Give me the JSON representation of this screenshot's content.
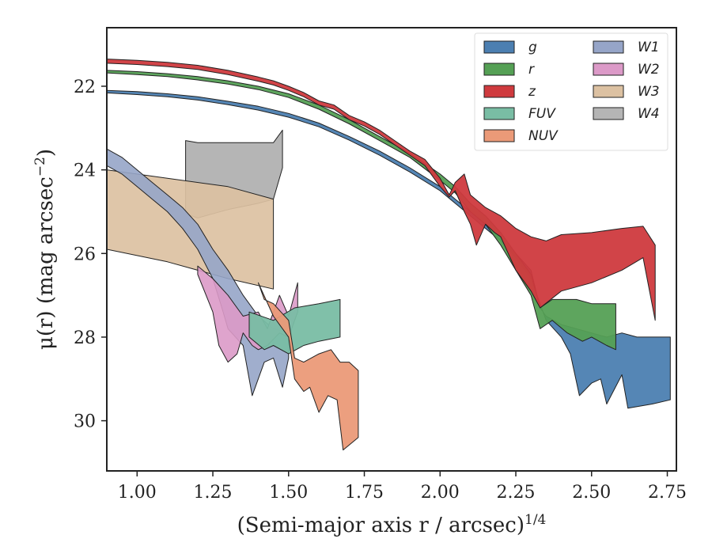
{
  "chart_data": {
    "type": "area",
    "xlabel": "(Semi-major axis r / arcsec)",
    "xlabel_exponent": "1/4",
    "ylabel": "μ(r) (mag arcsec",
    "ylabel_exponent": "−2",
    "ylabel_close": ")",
    "xlim": [
      0.9,
      2.78
    ],
    "ylim": [
      31.2,
      20.6
    ],
    "y_inverted": true,
    "grid": false,
    "legend_placement": "top-right",
    "legend_columns": 2,
    "x_ticks": [
      {
        "value": 1.0,
        "label": "1.00"
      },
      {
        "value": 1.25,
        "label": "1.25"
      },
      {
        "value": 1.5,
        "label": "1.50"
      },
      {
        "value": 1.75,
        "label": "1.75"
      },
      {
        "value": 2.0,
        "label": "2.00"
      },
      {
        "value": 2.25,
        "label": "2.25"
      },
      {
        "value": 2.5,
        "label": "2.50"
      },
      {
        "value": 2.75,
        "label": "2.75"
      }
    ],
    "y_ticks": [
      {
        "value": 22,
        "label": "22"
      },
      {
        "value": 24,
        "label": "24"
      },
      {
        "value": 26,
        "label": "26"
      },
      {
        "value": 28,
        "label": "28"
      },
      {
        "value": 30,
        "label": "30"
      }
    ],
    "series": [
      {
        "name": "W4",
        "color": "#b5b5b5",
        "alpha": 1.0,
        "upper": [
          [
            1.16,
            23.3
          ],
          [
            1.2,
            23.35
          ],
          [
            1.3,
            23.35
          ],
          [
            1.4,
            23.35
          ],
          [
            1.45,
            23.35
          ],
          [
            1.48,
            23.05
          ]
        ],
        "lower": [
          [
            1.16,
            25.05
          ],
          [
            1.2,
            25.15
          ],
          [
            1.3,
            24.95
          ],
          [
            1.4,
            24.8
          ],
          [
            1.45,
            24.7
          ],
          [
            1.48,
            23.95
          ]
        ]
      },
      {
        "name": "W3",
        "color": "#dcc1a2",
        "alpha": 0.92,
        "upper": [
          [
            0.9,
            24.0
          ],
          [
            1.1,
            24.2
          ],
          [
            1.3,
            24.4
          ],
          [
            1.45,
            24.7
          ]
        ],
        "lower": [
          [
            0.9,
            25.9
          ],
          [
            1.1,
            26.2
          ],
          [
            1.3,
            26.6
          ],
          [
            1.45,
            26.85
          ]
        ]
      },
      {
        "name": "W1",
        "color": "#96a5c8",
        "alpha": 0.9,
        "upper": [
          [
            0.9,
            23.5
          ],
          [
            0.95,
            23.7
          ],
          [
            1.0,
            24.0
          ],
          [
            1.05,
            24.3
          ],
          [
            1.1,
            24.6
          ],
          [
            1.15,
            24.9
          ],
          [
            1.2,
            25.3
          ],
          [
            1.25,
            25.9
          ],
          [
            1.3,
            26.4
          ],
          [
            1.35,
            27.0
          ],
          [
            1.4,
            27.5
          ],
          [
            1.45,
            27.8
          ],
          [
            1.5,
            27.9
          ]
        ],
        "lower": [
          [
            0.9,
            23.9
          ],
          [
            0.95,
            24.1
          ],
          [
            1.0,
            24.4
          ],
          [
            1.05,
            24.7
          ],
          [
            1.1,
            25.0
          ],
          [
            1.15,
            25.4
          ],
          [
            1.2,
            25.9
          ],
          [
            1.25,
            26.6
          ],
          [
            1.28,
            27.3
          ],
          [
            1.3,
            27.8
          ],
          [
            1.35,
            28.2
          ],
          [
            1.38,
            29.4
          ],
          [
            1.42,
            28.6
          ],
          [
            1.45,
            28.5
          ],
          [
            1.48,
            29.2
          ],
          [
            1.5,
            28.5
          ]
        ]
      },
      {
        "name": "W2",
        "color": "#dc9ac8",
        "alpha": 0.9,
        "upper": [
          [
            1.2,
            26.3
          ],
          [
            1.25,
            26.6
          ],
          [
            1.3,
            27.0
          ],
          [
            1.35,
            27.5
          ],
          [
            1.4,
            27.4
          ],
          [
            1.43,
            27.8
          ],
          [
            1.47,
            27.0
          ],
          [
            1.5,
            27.5
          ],
          [
            1.53,
            26.7
          ]
        ],
        "lower": [
          [
            1.2,
            26.5
          ],
          [
            1.25,
            27.4
          ],
          [
            1.27,
            28.2
          ],
          [
            1.3,
            28.6
          ],
          [
            1.33,
            28.4
          ],
          [
            1.35,
            27.9
          ],
          [
            1.38,
            28.2
          ],
          [
            1.4,
            28.3
          ],
          [
            1.43,
            28.2
          ],
          [
            1.47,
            27.9
          ],
          [
            1.5,
            28.0
          ],
          [
            1.53,
            27.4
          ]
        ]
      },
      {
        "name": "FUV",
        "color": "#79bda4",
        "alpha": 0.95,
        "upper": [
          [
            1.37,
            27.4
          ],
          [
            1.45,
            27.6
          ],
          [
            1.52,
            27.3
          ],
          [
            1.6,
            27.2
          ],
          [
            1.67,
            27.1
          ]
        ],
        "lower": [
          [
            1.37,
            28.0
          ],
          [
            1.42,
            28.3
          ],
          [
            1.45,
            28.2
          ],
          [
            1.5,
            28.4
          ],
          [
            1.55,
            28.2
          ],
          [
            1.6,
            28.1
          ],
          [
            1.67,
            28.0
          ]
        ]
      },
      {
        "name": "NUV",
        "color": "#eb9a78",
        "alpha": 0.95,
        "upper": [
          [
            1.4,
            26.7
          ],
          [
            1.42,
            27.1
          ],
          [
            1.45,
            27.2
          ],
          [
            1.5,
            27.6
          ],
          [
            1.52,
            28.5
          ],
          [
            1.55,
            28.6
          ],
          [
            1.6,
            28.4
          ],
          [
            1.64,
            28.3
          ],
          [
            1.67,
            28.6
          ],
          [
            1.7,
            28.6
          ],
          [
            1.73,
            28.8
          ]
        ],
        "lower": [
          [
            1.4,
            26.7
          ],
          [
            1.45,
            27.5
          ],
          [
            1.5,
            28.0
          ],
          [
            1.52,
            29.0
          ],
          [
            1.55,
            29.3
          ],
          [
            1.57,
            29.2
          ],
          [
            1.6,
            29.8
          ],
          [
            1.63,
            29.4
          ],
          [
            1.66,
            29.5
          ],
          [
            1.68,
            30.7
          ],
          [
            1.73,
            30.4
          ]
        ]
      },
      {
        "name": "g",
        "color": "#4c7fb1",
        "alpha": 0.95,
        "upper": [
          [
            0.9,
            22.1
          ],
          [
            1.0,
            22.13
          ],
          [
            1.1,
            22.18
          ],
          [
            1.2,
            22.25
          ],
          [
            1.3,
            22.36
          ],
          [
            1.4,
            22.48
          ],
          [
            1.5,
            22.65
          ],
          [
            1.6,
            22.88
          ],
          [
            1.7,
            23.2
          ],
          [
            1.8,
            23.55
          ],
          [
            1.9,
            23.95
          ],
          [
            2.0,
            24.4
          ],
          [
            2.05,
            24.7
          ],
          [
            2.1,
            25.0
          ],
          [
            2.15,
            25.3
          ],
          [
            2.2,
            25.6
          ],
          [
            2.25,
            26.0
          ],
          [
            2.3,
            26.4
          ],
          [
            2.33,
            27.3
          ],
          [
            2.35,
            27.5
          ],
          [
            2.4,
            27.7
          ],
          [
            2.45,
            27.8
          ],
          [
            2.5,
            27.9
          ],
          [
            2.55,
            28.0
          ],
          [
            2.6,
            27.9
          ],
          [
            2.65,
            28.0
          ],
          [
            2.7,
            28.0
          ],
          [
            2.76,
            28.0
          ]
        ],
        "lower": [
          [
            0.9,
            22.16
          ],
          [
            1.0,
            22.2
          ],
          [
            1.1,
            22.25
          ],
          [
            1.2,
            22.33
          ],
          [
            1.3,
            22.44
          ],
          [
            1.4,
            22.57
          ],
          [
            1.5,
            22.74
          ],
          [
            1.6,
            22.97
          ],
          [
            1.7,
            23.29
          ],
          [
            1.8,
            23.65
          ],
          [
            1.9,
            24.05
          ],
          [
            2.0,
            24.5
          ],
          [
            2.05,
            24.8
          ],
          [
            2.1,
            25.1
          ],
          [
            2.15,
            25.4
          ],
          [
            2.2,
            25.7
          ],
          [
            2.25,
            26.1
          ],
          [
            2.3,
            26.6
          ],
          [
            2.35,
            27.6
          ],
          [
            2.4,
            28.0
          ],
          [
            2.43,
            28.4
          ],
          [
            2.46,
            29.4
          ],
          [
            2.5,
            29.1
          ],
          [
            2.53,
            29.0
          ],
          [
            2.55,
            29.6
          ],
          [
            2.6,
            28.9
          ],
          [
            2.62,
            29.7
          ],
          [
            2.7,
            29.6
          ],
          [
            2.76,
            29.5
          ]
        ]
      },
      {
        "name": "r",
        "color": "#55a055",
        "alpha": 0.95,
        "upper": [
          [
            0.9,
            21.62
          ],
          [
            1.0,
            21.65
          ],
          [
            1.1,
            21.7
          ],
          [
            1.2,
            21.77
          ],
          [
            1.3,
            21.87
          ],
          [
            1.4,
            22.0
          ],
          [
            1.5,
            22.18
          ],
          [
            1.6,
            22.45
          ],
          [
            1.7,
            22.8
          ],
          [
            1.8,
            23.2
          ],
          [
            1.9,
            23.6
          ],
          [
            2.0,
            24.1
          ],
          [
            2.05,
            24.4
          ],
          [
            2.1,
            24.8
          ],
          [
            2.15,
            25.1
          ],
          [
            2.2,
            25.5
          ],
          [
            2.25,
            26.0
          ],
          [
            2.3,
            26.5
          ],
          [
            2.33,
            27.3
          ],
          [
            2.37,
            27.1
          ],
          [
            2.45,
            27.1
          ],
          [
            2.5,
            27.2
          ],
          [
            2.58,
            27.2
          ]
        ],
        "lower": [
          [
            0.9,
            21.68
          ],
          [
            1.0,
            21.72
          ],
          [
            1.1,
            21.77
          ],
          [
            1.2,
            21.85
          ],
          [
            1.3,
            21.95
          ],
          [
            1.4,
            22.08
          ],
          [
            1.5,
            22.27
          ],
          [
            1.6,
            22.55
          ],
          [
            1.7,
            22.9
          ],
          [
            1.8,
            23.3
          ],
          [
            1.9,
            23.7
          ],
          [
            2.0,
            24.25
          ],
          [
            2.05,
            24.55
          ],
          [
            2.1,
            25.0
          ],
          [
            2.15,
            25.3
          ],
          [
            2.2,
            25.8
          ],
          [
            2.25,
            26.4
          ],
          [
            2.3,
            27.0
          ],
          [
            2.33,
            27.8
          ],
          [
            2.37,
            27.6
          ],
          [
            2.42,
            27.9
          ],
          [
            2.47,
            28.1
          ],
          [
            2.5,
            28.0
          ],
          [
            2.55,
            28.2
          ],
          [
            2.58,
            28.3
          ]
        ]
      },
      {
        "name": "z",
        "color": "#cf3a3e",
        "alpha": 0.95,
        "upper": [
          [
            0.9,
            21.35
          ],
          [
            1.0,
            21.38
          ],
          [
            1.1,
            21.43
          ],
          [
            1.2,
            21.5
          ],
          [
            1.3,
            21.62
          ],
          [
            1.4,
            21.78
          ],
          [
            1.45,
            21.87
          ],
          [
            1.5,
            22.0
          ],
          [
            1.55,
            22.15
          ],
          [
            1.6,
            22.35
          ],
          [
            1.65,
            22.45
          ],
          [
            1.7,
            22.7
          ],
          [
            1.75,
            22.85
          ],
          [
            1.8,
            23.05
          ],
          [
            1.85,
            23.3
          ],
          [
            1.9,
            23.55
          ],
          [
            1.95,
            23.75
          ],
          [
            2.0,
            24.2
          ],
          [
            2.03,
            24.6
          ],
          [
            2.05,
            24.3
          ],
          [
            2.08,
            24.1
          ],
          [
            2.1,
            24.6
          ],
          [
            2.15,
            24.9
          ],
          [
            2.2,
            25.1
          ],
          [
            2.25,
            25.4
          ],
          [
            2.3,
            25.6
          ],
          [
            2.35,
            25.7
          ],
          [
            2.4,
            25.55
          ],
          [
            2.5,
            25.5
          ],
          [
            2.6,
            25.4
          ],
          [
            2.67,
            25.35
          ],
          [
            2.71,
            25.8
          ]
        ],
        "lower": [
          [
            0.9,
            21.45
          ],
          [
            1.0,
            21.48
          ],
          [
            1.1,
            21.53
          ],
          [
            1.2,
            21.6
          ],
          [
            1.3,
            21.72
          ],
          [
            1.4,
            21.88
          ],
          [
            1.45,
            21.97
          ],
          [
            1.5,
            22.1
          ],
          [
            1.55,
            22.25
          ],
          [
            1.6,
            22.45
          ],
          [
            1.65,
            22.55
          ],
          [
            1.7,
            22.8
          ],
          [
            1.75,
            22.95
          ],
          [
            1.8,
            23.15
          ],
          [
            1.85,
            23.4
          ],
          [
            1.9,
            23.65
          ],
          [
            1.95,
            23.9
          ],
          [
            2.0,
            24.4
          ],
          [
            2.03,
            24.65
          ],
          [
            2.05,
            24.5
          ],
          [
            2.08,
            25.0
          ],
          [
            2.1,
            25.3
          ],
          [
            2.12,
            25.8
          ],
          [
            2.15,
            25.3
          ],
          [
            2.18,
            25.5
          ],
          [
            2.2,
            25.6
          ],
          [
            2.25,
            26.4
          ],
          [
            2.3,
            26.9
          ],
          [
            2.33,
            27.3
          ],
          [
            2.4,
            26.9
          ],
          [
            2.5,
            26.7
          ],
          [
            2.6,
            26.4
          ],
          [
            2.67,
            26.1
          ],
          [
            2.71,
            27.6
          ]
        ]
      }
    ],
    "legend": [
      {
        "name": "g",
        "color": "#4c7fb1"
      },
      {
        "name": "r",
        "color": "#55a055"
      },
      {
        "name": "z",
        "color": "#cf3a3e"
      },
      {
        "name": "FUV",
        "color": "#79bda4"
      },
      {
        "name": "NUV",
        "color": "#eb9a78"
      },
      {
        "name": "W1",
        "color": "#96a5c8"
      },
      {
        "name": "W2",
        "color": "#dc9ac8"
      },
      {
        "name": "W3",
        "color": "#dcc1a2"
      },
      {
        "name": "W4",
        "color": "#b5b5b5"
      }
    ]
  }
}
